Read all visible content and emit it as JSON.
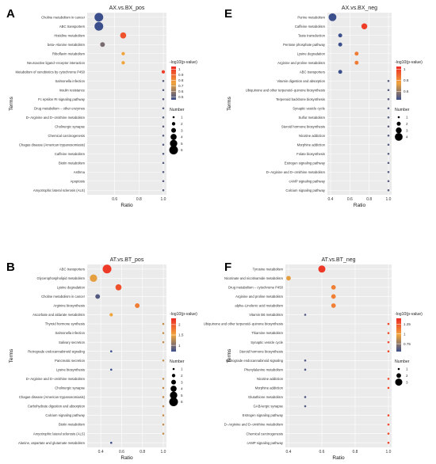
{
  "chart_data": [
    {
      "type": "scatter",
      "panel_letter": "A",
      "title": "AX.vs.BX_pos",
      "xlabel": "Ratio",
      "ylabel": "Terms",
      "xlim": [
        0.4,
        1.0
      ],
      "x_ticks": [
        "0.6",
        "0.8",
        "1.0"
      ],
      "x_tick_values": [
        0.6,
        0.8,
        1.0
      ],
      "categories": [
        "Choline metabolism in cancer",
        "ABC transporters",
        "Histidine metabolism",
        "beta−Alanine metabolism",
        "Riboflavin metabolism",
        "Neuroactive ligand−receptor interaction",
        "Metabolism of xenobiotics by cytochrome P450",
        "Salmonella infection",
        "Insulin resistance",
        "Fc epsilon RI signaling pathway",
        "Drug metabolism − other enzymes",
        "D−Arginine and D−ornithine metabolism",
        "Cholinergic synapse",
        "Chemical carcinogenesis",
        "Chagas disease (American trypanosomiasis)",
        "Caffeine metabolism",
        "Biotin metabolism",
        "Asthma",
        "Apoptosis",
        "Amyotrophic lateral sclerosis (ALS)"
      ],
      "points": [
        {
          "term": "Choline metabolism in cancer",
          "ratio": 0.47,
          "neglog10p": 0.45,
          "number": 6
        },
        {
          "term": "ABC transporters",
          "ratio": 0.47,
          "neglog10p": 0.45,
          "number": 6
        },
        {
          "term": "Histidine metabolism",
          "ratio": 0.67,
          "neglog10p": 0.95,
          "number": 4
        },
        {
          "term": "beta−Alanine metabolism",
          "ratio": 0.5,
          "neglog10p": 0.55,
          "number": 3
        },
        {
          "term": "Riboflavin metabolism",
          "ratio": 0.67,
          "neglog10p": 0.75,
          "number": 2
        },
        {
          "term": "Neuroactive ligand−receptor interaction",
          "ratio": 0.67,
          "neglog10p": 0.75,
          "number": 2
        },
        {
          "term": "Metabolism of xenobiotics by cytochrome P450",
          "ratio": 1.0,
          "neglog10p": 1.0,
          "number": 2
        },
        {
          "term": "Salmonella infection",
          "ratio": 1.0,
          "neglog10p": 0.5,
          "number": 1
        },
        {
          "term": "Insulin resistance",
          "ratio": 1.0,
          "neglog10p": 0.5,
          "number": 1
        },
        {
          "term": "Fc epsilon RI signaling pathway",
          "ratio": 1.0,
          "neglog10p": 0.5,
          "number": 1
        },
        {
          "term": "Drug metabolism − other enzymes",
          "ratio": 1.0,
          "neglog10p": 0.5,
          "number": 1
        },
        {
          "term": "D−Arginine and D−ornithine metabolism",
          "ratio": 1.0,
          "neglog10p": 0.5,
          "number": 1
        },
        {
          "term": "Cholinergic synapse",
          "ratio": 1.0,
          "neglog10p": 0.5,
          "number": 1
        },
        {
          "term": "Chemical carcinogenesis",
          "ratio": 1.0,
          "neglog10p": 0.5,
          "number": 1
        },
        {
          "term": "Chagas disease (American trypanosomiasis)",
          "ratio": 1.0,
          "neglog10p": 0.5,
          "number": 1
        },
        {
          "term": "Caffeine metabolism",
          "ratio": 1.0,
          "neglog10p": 0.5,
          "number": 1
        },
        {
          "term": "Biotin metabolism",
          "ratio": 1.0,
          "neglog10p": 0.5,
          "number": 1
        },
        {
          "term": "Asthma",
          "ratio": 1.0,
          "neglog10p": 0.5,
          "number": 1
        },
        {
          "term": "Apoptosis",
          "ratio": 1.0,
          "neglog10p": 0.5,
          "number": 1
        },
        {
          "term": "Amyotrophic lateral sclerosis (ALS)",
          "ratio": 1.0,
          "neglog10p": 0.5,
          "number": 1
        }
      ],
      "color_legend": {
        "title": "-log10(p-value)",
        "ticks": [
          1.0,
          0.9,
          0.8,
          0.7,
          0.6,
          0.5
        ],
        "min": 0.45,
        "max": 1.05
      },
      "size_legend": {
        "title": "Number",
        "values": [
          1,
          2,
          3,
          4,
          5,
          6
        ],
        "max": 6
      }
    },
    {
      "type": "scatter",
      "panel_letter": "E",
      "title": "AX.vs.BX_neg",
      "xlabel": "Ratio",
      "ylabel": "Terms",
      "xlim": [
        0.4,
        1.0
      ],
      "x_ticks": [
        "0.4",
        "0.6",
        "0.8",
        "1.0"
      ],
      "x_tick_values": [
        0.4,
        0.6,
        0.8,
        1.0
      ],
      "categories": [
        "Purine metabolism",
        "Caffeine metabolism",
        "Taste transduction",
        "Pentose phosphate pathway",
        "Lysine degradation",
        "Arginine and proline metabolism",
        "ABC transporters",
        "Vitamin digestion and absorption",
        "Ubiquinone and other terpenoid−quinone biosynthesis",
        "Terpenoid backbone biosynthesis",
        "Synaptic vesicle cycle",
        "Sulfur metabolism",
        "Steroid hormone biosynthesis",
        "Nicotine addiction",
        "Morphine addiction",
        "Folate biosynthesis",
        "Estrogen signaling pathway",
        "D−Arginine and D−ornithine metabolism",
        "cAMP signaling pathway",
        "Calcium signaling pathway"
      ],
      "points": [
        {
          "term": "Purine metabolism",
          "ratio": 0.42,
          "neglog10p": 0.45,
          "number": 4
        },
        {
          "term": "Caffeine metabolism",
          "ratio": 0.75,
          "neglog10p": 1.0,
          "number": 3
        },
        {
          "term": "Taste transduction",
          "ratio": 0.5,
          "neglog10p": 0.45,
          "number": 2
        },
        {
          "term": "Pentose phosphate pathway",
          "ratio": 0.5,
          "neglog10p": 0.45,
          "number": 2
        },
        {
          "term": "Lysine degradation",
          "ratio": 0.67,
          "neglog10p": 0.85,
          "number": 2
        },
        {
          "term": "Arginine and proline metabolism",
          "ratio": 0.67,
          "neglog10p": 0.85,
          "number": 2
        },
        {
          "term": "ABC transporters",
          "ratio": 0.5,
          "neglog10p": 0.45,
          "number": 2
        },
        {
          "term": "Vitamin digestion and absorption",
          "ratio": 1.0,
          "neglog10p": 0.5,
          "number": 1
        },
        {
          "term": "Ubiquinone and other terpenoid−quinone biosynthesis",
          "ratio": 1.0,
          "neglog10p": 0.5,
          "number": 1
        },
        {
          "term": "Terpenoid backbone biosynthesis",
          "ratio": 1.0,
          "neglog10p": 0.5,
          "number": 1
        },
        {
          "term": "Synaptic vesicle cycle",
          "ratio": 1.0,
          "neglog10p": 0.5,
          "number": 1
        },
        {
          "term": "Sulfur metabolism",
          "ratio": 1.0,
          "neglog10p": 0.5,
          "number": 1
        },
        {
          "term": "Steroid hormone biosynthesis",
          "ratio": 1.0,
          "neglog10p": 0.5,
          "number": 1
        },
        {
          "term": "Nicotine addiction",
          "ratio": 1.0,
          "neglog10p": 0.5,
          "number": 1
        },
        {
          "term": "Morphine addiction",
          "ratio": 1.0,
          "neglog10p": 0.5,
          "number": 1
        },
        {
          "term": "Folate biosynthesis",
          "ratio": 1.0,
          "neglog10p": 0.5,
          "number": 1
        },
        {
          "term": "Estrogen signaling pathway",
          "ratio": 1.0,
          "neglog10p": 0.5,
          "number": 1
        },
        {
          "term": "D−Arginine and D−ornithine metabolism",
          "ratio": 1.0,
          "neglog10p": 0.5,
          "number": 1
        },
        {
          "term": "cAMP signaling pathway",
          "ratio": 1.0,
          "neglog10p": 0.5,
          "number": 1
        },
        {
          "term": "Calcium signaling pathway",
          "ratio": 1.0,
          "neglog10p": 0.5,
          "number": 1
        }
      ],
      "color_legend": {
        "title": "-log10(p-value)",
        "ticks": [
          1.0,
          0.8,
          0.6
        ],
        "min": 0.45,
        "max": 1.05
      },
      "size_legend": {
        "title": "Number",
        "values": [
          1,
          2,
          3,
          4
        ],
        "max": 4
      }
    },
    {
      "type": "scatter",
      "panel_letter": "B",
      "title": "AT.vs.BT_pos",
      "xlabel": "Ratio",
      "ylabel": "Terms",
      "xlim": [
        0.3,
        1.0
      ],
      "x_ticks": [
        "0.4",
        "0.6",
        "0.8",
        "1.0"
      ],
      "x_tick_values": [
        0.4,
        0.6,
        0.8,
        1.0
      ],
      "categories": [
        "ABC transporters",
        "Glycerophospholipid metabolism",
        "Lysine degradation",
        "Choline metabolism in cancer",
        "Arginine biosynthesis",
        "Ascorbate and aldarate metabolism",
        "Thyroid hormone synthesis",
        "Salmonella infection",
        "Salivary secretion",
        "Retrograde endocannabinoid signaling",
        "Pancreatic secretion",
        "Lysine biosynthesis",
        "D−Arginine and D−ornithine metabolism",
        "Cholinergic synapse",
        "Chagas disease (American trypanosomiasis)",
        "Carbohydrate digestion and absorption",
        "Calcium signaling pathway",
        "Biotin metabolism",
        "Amyotrophic lateral sclerosis (ALS)",
        "Alanine, aspartate and glutamate metabolism"
      ],
      "points": [
        {
          "term": "ABC transporters",
          "ratio": 0.46,
          "neglog10p": 2.2,
          "number": 6
        },
        {
          "term": "Glycerophospholipid metabolism",
          "ratio": 0.33,
          "neglog10p": 1.45,
          "number": 5
        },
        {
          "term": "Lysine degradation",
          "ratio": 0.57,
          "neglog10p": 2.05,
          "number": 4
        },
        {
          "term": "Choline metabolism in cancer",
          "ratio": 0.37,
          "neglog10p": 0.8,
          "number": 3
        },
        {
          "term": "Arginine biosynthesis",
          "ratio": 0.75,
          "neglog10p": 1.75,
          "number": 3
        },
        {
          "term": "Ascorbate and aldarate metabolism",
          "ratio": 0.5,
          "neglog10p": 1.5,
          "number": 2
        },
        {
          "term": "Thyroid hormone synthesis",
          "ratio": 1.0,
          "neglog10p": 1.3,
          "number": 1
        },
        {
          "term": "Salmonella infection",
          "ratio": 1.0,
          "neglog10p": 1.3,
          "number": 1
        },
        {
          "term": "Salivary secretion",
          "ratio": 1.0,
          "neglog10p": 1.3,
          "number": 1
        },
        {
          "term": "Retrograde endocannabinoid signaling",
          "ratio": 0.5,
          "neglog10p": 0.7,
          "number": 1
        },
        {
          "term": "Pancreatic secretion",
          "ratio": 1.0,
          "neglog10p": 1.3,
          "number": 1
        },
        {
          "term": "Lysine biosynthesis",
          "ratio": 0.5,
          "neglog10p": 0.7,
          "number": 1
        },
        {
          "term": "D−Arginine and D−ornithine metabolism",
          "ratio": 1.0,
          "neglog10p": 1.3,
          "number": 1
        },
        {
          "term": "Cholinergic synapse",
          "ratio": 1.0,
          "neglog10p": 1.3,
          "number": 1
        },
        {
          "term": "Chagas disease (American trypanosomiasis)",
          "ratio": 1.0,
          "neglog10p": 1.3,
          "number": 1
        },
        {
          "term": "Carbohydrate digestion and absorption",
          "ratio": 1.0,
          "neglog10p": 1.3,
          "number": 1
        },
        {
          "term": "Calcium signaling pathway",
          "ratio": 1.0,
          "neglog10p": 1.3,
          "number": 1
        },
        {
          "term": "Biotin metabolism",
          "ratio": 1.0,
          "neglog10p": 1.3,
          "number": 1
        },
        {
          "term": "Amyotrophic lateral sclerosis (ALS)",
          "ratio": 1.0,
          "neglog10p": 1.3,
          "number": 1
        },
        {
          "term": "Alanine, aspartate and glutamate metabolism",
          "ratio": 0.5,
          "neglog10p": 0.7,
          "number": 1
        }
      ],
      "color_legend": {
        "title": "-log10(p-value)",
        "ticks": [
          2.0,
          1.5,
          1.0
        ],
        "min": 0.7,
        "max": 2.3
      },
      "size_legend": {
        "title": "Number",
        "values": [
          1,
          2,
          3,
          4,
          5,
          6
        ],
        "max": 6
      }
    },
    {
      "type": "scatter",
      "panel_letter": "F",
      "title": "AT.vs.BT_neg",
      "xlabel": "Ratio",
      "ylabel": "Terms",
      "xlim": [
        0.4,
        1.0
      ],
      "x_ticks": [
        "0.4",
        "0.6",
        "0.8",
        "1.0"
      ],
      "x_tick_values": [
        0.4,
        0.6,
        0.8,
        1.0
      ],
      "categories": [
        "Tyrosine metabolism",
        "Nicotinate and nicotinamide metabolism",
        "Drug metabolism − cytochrome P450",
        "Arginine and proline metabolism",
        "alpha−Linolenic acid metabolism",
        "Vitamin B6 metabolism",
        "Ubiquinone and other terpenoid−quinone biosynthesis",
        "Thiamine metabolism",
        "Synaptic vesicle cycle",
        "Steroid hormone biosynthesis",
        "Retrograde endocannabinoid signaling",
        "Phenylalanine metabolism",
        "Nicotine addiction",
        "Morphine addiction",
        "Glutathione metabolism",
        "GABAergic synapse",
        "Estrogen signaling pathway",
        "D−Arginine and D−ornithine metabolism",
        "Chemical carcinogenesis",
        "cAMP signaling pathway"
      ],
      "points": [
        {
          "term": "Tyrosine metabolism",
          "ratio": 0.6,
          "neglog10p": 1.35,
          "number": 3
        },
        {
          "term": "Nicotinate and nicotinamide metabolism",
          "ratio": 0.4,
          "neglog10p": 0.95,
          "number": 2
        },
        {
          "term": "Drug metabolism − cytochrome P450",
          "ratio": 0.67,
          "neglog10p": 1.1,
          "number": 2
        },
        {
          "term": "Arginine and proline metabolism",
          "ratio": 0.67,
          "neglog10p": 1.1,
          "number": 2
        },
        {
          "term": "alpha−Linolenic acid metabolism",
          "ratio": 0.67,
          "neglog10p": 1.1,
          "number": 2
        },
        {
          "term": "Vitamin B6 metabolism",
          "ratio": 0.5,
          "neglog10p": 0.6,
          "number": 1
        },
        {
          "term": "Ubiquinone and other terpenoid−quinone biosynthesis",
          "ratio": 1.0,
          "neglog10p": 1.3,
          "number": 1
        },
        {
          "term": "Thiamine metabolism",
          "ratio": 1.0,
          "neglog10p": 1.3,
          "number": 1
        },
        {
          "term": "Synaptic vesicle cycle",
          "ratio": 1.0,
          "neglog10p": 1.3,
          "number": 1
        },
        {
          "term": "Steroid hormone biosynthesis",
          "ratio": 1.0,
          "neglog10p": 1.3,
          "number": 1
        },
        {
          "term": "Retrograde endocannabinoid signaling",
          "ratio": 0.5,
          "neglog10p": 0.6,
          "number": 1
        },
        {
          "term": "Phenylalanine metabolism",
          "ratio": 0.5,
          "neglog10p": 0.6,
          "number": 1
        },
        {
          "term": "Nicotine addiction",
          "ratio": 1.0,
          "neglog10p": 1.3,
          "number": 1
        },
        {
          "term": "Morphine addiction",
          "ratio": 1.0,
          "neglog10p": 1.3,
          "number": 1
        },
        {
          "term": "Glutathione metabolism",
          "ratio": 0.5,
          "neglog10p": 0.6,
          "number": 1
        },
        {
          "term": "GABAergic synapse",
          "ratio": 0.5,
          "neglog10p": 0.6,
          "number": 1
        },
        {
          "term": "Estrogen signaling pathway",
          "ratio": 1.0,
          "neglog10p": 1.3,
          "number": 1
        },
        {
          "term": "D−Arginine and D−ornithine metabolism",
          "ratio": 1.0,
          "neglog10p": 1.3,
          "number": 1
        },
        {
          "term": "Chemical carcinogenesis",
          "ratio": 1.0,
          "neglog10p": 1.3,
          "number": 1
        },
        {
          "term": "cAMP signaling pathway",
          "ratio": 1.0,
          "neglog10p": 1.3,
          "number": 1
        }
      ],
      "color_legend": {
        "title": "-log10(p-value)",
        "ticks": [
          1.25,
          1.0,
          0.75
        ],
        "min": 0.55,
        "max": 1.4
      },
      "size_legend": {
        "title": "Number",
        "values": [
          1,
          2,
          3
        ],
        "max": 3
      }
    }
  ],
  "colors": {
    "low": "#3b4f8c",
    "mid": "#f0a43c",
    "high": "#ee2a24",
    "panel_bg": "#ebebeb",
    "grid": "#ffffff"
  }
}
